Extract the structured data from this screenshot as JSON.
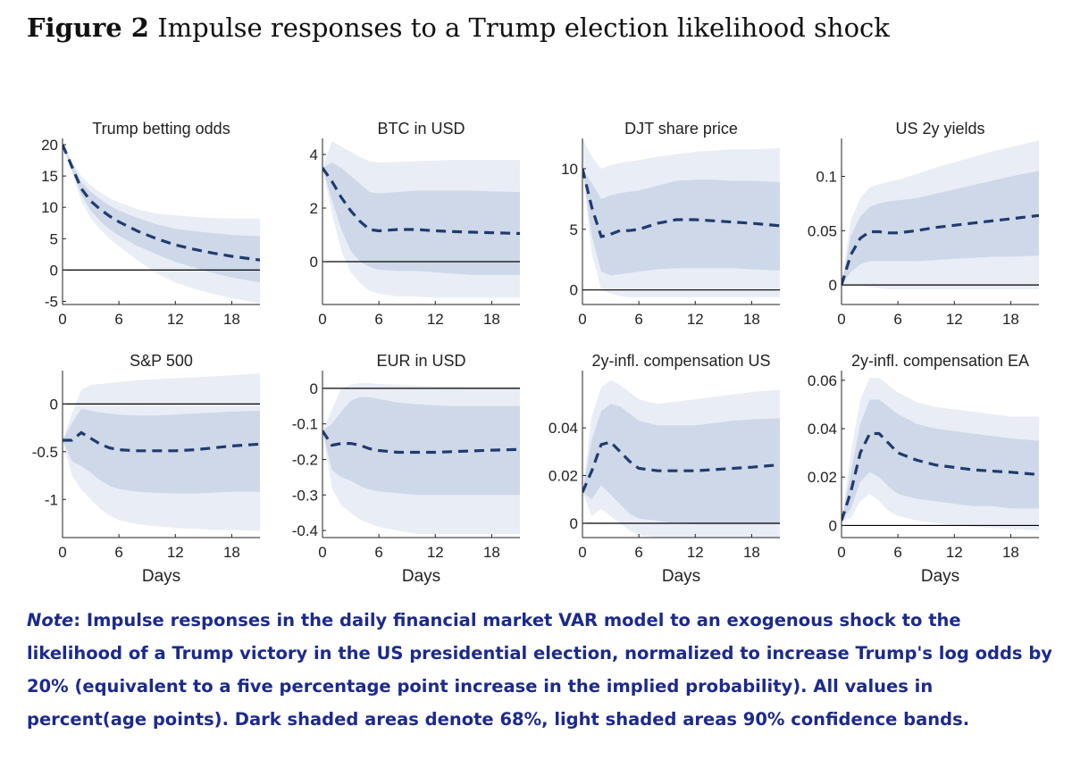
{
  "figure": {
    "label": "Figure 2",
    "title": "Impulse responses to a Trump election likelihood shock"
  },
  "note": {
    "lead": "Note",
    "text": ": Impulse responses in the daily financial market VAR model to an exogenous shock to the likelihood of a Trump victory in the US presidential election, normalized to increase Trump's log odds by 20% (equivalent to a five percentage point increase in the implied probability). All values in percent(age points). Dark shaded areas denote 68%, light shaded areas 90% confidence bands."
  },
  "colors": {
    "median_line": "#1f3b6e",
    "band_68": "#cfd8e8",
    "band_90": "#e9eef6",
    "zero_line": "#000000"
  },
  "chart_data": [
    {
      "type": "area",
      "title": "Trump betting odds",
      "xlabel": "",
      "xlim": [
        0,
        21
      ],
      "ylim": [
        -5.5,
        21
      ],
      "xticks": [
        0,
        6,
        12,
        18
      ],
      "yticks": [
        -5,
        0,
        5,
        10,
        15,
        20
      ],
      "ytick_labels": [
        "-5",
        "0",
        "5",
        "10",
        "15",
        "20"
      ],
      "x": [
        0,
        1,
        2,
        3,
        4,
        5,
        6,
        8,
        10,
        12,
        14,
        16,
        18,
        21
      ],
      "median": [
        20,
        16.5,
        13,
        11,
        9.7,
        8.6,
        7.7,
        6.2,
        5,
        4,
        3.3,
        2.7,
        2.2,
        1.6
      ],
      "band68_lower": [
        20,
        16,
        12,
        9.5,
        7.8,
        6.5,
        5.5,
        3.8,
        2.5,
        1.3,
        0.4,
        -0.5,
        -1.2,
        -2
      ],
      "band68_upper": [
        20,
        17,
        14,
        12.5,
        11.3,
        10.3,
        9.5,
        8.3,
        7.3,
        6.6,
        6.2,
        5.9,
        5.6,
        5.4
      ],
      "band90_lower": [
        20,
        15.5,
        11,
        8.3,
        6.5,
        5,
        3.8,
        1.5,
        -0.5,
        -2,
        -3,
        -3.8,
        -4.5,
        -5.3
      ],
      "band90_upper": [
        20,
        17.5,
        15,
        13.5,
        12.4,
        11.5,
        10.8,
        9.7,
        9,
        8.7,
        8.5,
        8.3,
        8.2,
        8.2
      ]
    },
    {
      "type": "area",
      "title": "BTC in USD",
      "xlabel": "",
      "xlim": [
        0,
        21
      ],
      "ylim": [
        -1.6,
        4.6
      ],
      "xticks": [
        0,
        6,
        12,
        18
      ],
      "yticks": [
        0,
        2,
        4
      ],
      "ytick_labels": [
        "0",
        "2",
        "4"
      ],
      "x": [
        0,
        1,
        2,
        3,
        4,
        5,
        6,
        8,
        10,
        12,
        14,
        16,
        18,
        21
      ],
      "median": [
        3.5,
        3.0,
        2.4,
        1.9,
        1.5,
        1.2,
        1.15,
        1.2,
        1.2,
        1.15,
        1.12,
        1.1,
        1.08,
        1.05
      ],
      "band68_lower": [
        3.5,
        2.3,
        1.2,
        0.4,
        0,
        -0.2,
        -0.3,
        -0.35,
        -0.35,
        -0.4,
        -0.45,
        -0.5,
        -0.5,
        -0.5
      ],
      "band68_upper": [
        3.5,
        3.7,
        3.5,
        3.2,
        2.9,
        2.6,
        2.55,
        2.6,
        2.65,
        2.65,
        2.65,
        2.65,
        2.62,
        2.6
      ],
      "band90_lower": [
        3.5,
        1.8,
        0.4,
        -0.4,
        -0.8,
        -1.1,
        -1.2,
        -1.3,
        -1.3,
        -1.35,
        -1.35,
        -1.35,
        -1.35,
        -1.35
      ],
      "band90_upper": [
        3.5,
        4.5,
        4.3,
        4.1,
        3.9,
        3.75,
        3.7,
        3.72,
        3.75,
        3.77,
        3.8,
        3.8,
        3.8,
        3.8
      ]
    },
    {
      "type": "area",
      "title": "DJT share price",
      "xlabel": "",
      "xlim": [
        0,
        21
      ],
      "ylim": [
        -1.2,
        12.5
      ],
      "xticks": [
        0,
        6,
        12,
        18
      ],
      "yticks": [
        0,
        5,
        10
      ],
      "ytick_labels": [
        "0",
        "5",
        "10"
      ],
      "x": [
        0,
        1,
        2,
        3,
        4,
        5,
        6,
        8,
        10,
        12,
        14,
        16,
        18,
        21
      ],
      "median": [
        10,
        6.8,
        4.4,
        4.6,
        4.9,
        4.9,
        5.0,
        5.5,
        5.8,
        5.8,
        5.7,
        5.6,
        5.5,
        5.3
      ],
      "band68_lower": [
        10,
        4.5,
        1.5,
        1.2,
        1.3,
        1.4,
        1.5,
        1.7,
        1.8,
        1.8,
        1.8,
        1.8,
        1.7,
        1.6
      ],
      "band68_upper": [
        10,
        8.8,
        7.5,
        7.8,
        8.0,
        8.1,
        8.2,
        8.6,
        9.0,
        9.1,
        9.1,
        9.0,
        9.0,
        8.9
      ],
      "band90_lower": [
        10,
        3.0,
        0,
        -0.3,
        -0.5,
        -0.6,
        -0.6,
        -0.6,
        -0.6,
        -0.6,
        -0.6,
        -0.6,
        -0.6,
        -0.6
      ],
      "band90_upper": [
        12.5,
        11,
        10,
        10.3,
        10.5,
        10.6,
        10.7,
        11,
        11.2,
        11.4,
        11.5,
        11.6,
        11.6,
        11.7
      ]
    },
    {
      "type": "area",
      "title": "US 2y yields",
      "xlabel": "",
      "xlim": [
        0,
        21
      ],
      "ylim": [
        -0.018,
        0.135
      ],
      "xticks": [
        0,
        6,
        12,
        18
      ],
      "yticks": [
        0,
        0.05,
        0.1
      ],
      "ytick_labels": [
        "0",
        "0.05",
        "0.1"
      ],
      "x": [
        0,
        1,
        2,
        3,
        4,
        5,
        6,
        8,
        10,
        12,
        14,
        16,
        18,
        21
      ],
      "median": [
        0,
        0.028,
        0.043,
        0.049,
        0.049,
        0.048,
        0.048,
        0.05,
        0.053,
        0.055,
        0.057,
        0.059,
        0.061,
        0.064
      ],
      "band68_lower": [
        0,
        0.012,
        0.019,
        0.022,
        0.022,
        0.022,
        0.022,
        0.022,
        0.023,
        0.024,
        0.025,
        0.026,
        0.026,
        0.027
      ],
      "band68_upper": [
        0,
        0.045,
        0.063,
        0.072,
        0.075,
        0.077,
        0.078,
        0.08,
        0.084,
        0.088,
        0.092,
        0.096,
        0.1,
        0.105
      ],
      "band90_lower": [
        0,
        0,
        0,
        -0.002,
        -0.003,
        -0.004,
        -0.004,
        -0.004,
        -0.004,
        -0.004,
        -0.004,
        -0.004,
        -0.004,
        -0.004
      ],
      "band90_upper": [
        0,
        0.06,
        0.08,
        0.09,
        0.093,
        0.095,
        0.097,
        0.102,
        0.108,
        0.113,
        0.118,
        0.123,
        0.127,
        0.133
      ]
    },
    {
      "type": "area",
      "title": "S&P 500",
      "xlabel": "Days",
      "xlim": [
        0,
        21
      ],
      "ylim": [
        -1.4,
        0.35
      ],
      "xticks": [
        0,
        6,
        12,
        18
      ],
      "yticks": [
        -1,
        -0.5,
        0
      ],
      "ytick_labels": [
        "-1",
        "-0.5",
        "0"
      ],
      "x": [
        0,
        1,
        2,
        3,
        4,
        5,
        6,
        8,
        10,
        12,
        14,
        16,
        18,
        21
      ],
      "median": [
        -0.38,
        -0.38,
        -0.3,
        -0.36,
        -0.42,
        -0.46,
        -0.48,
        -0.49,
        -0.49,
        -0.49,
        -0.48,
        -0.46,
        -0.44,
        -0.42
      ],
      "band68_lower": [
        -0.38,
        -0.6,
        -0.65,
        -0.72,
        -0.8,
        -0.86,
        -0.89,
        -0.92,
        -0.93,
        -0.94,
        -0.94,
        -0.93,
        -0.92,
        -0.92
      ],
      "band68_upper": [
        -0.38,
        -0.2,
        -0.05,
        -0.07,
        -0.09,
        -0.1,
        -0.11,
        -0.12,
        -0.12,
        -0.11,
        -0.1,
        -0.09,
        -0.08,
        -0.07
      ],
      "band90_lower": [
        -0.38,
        -0.75,
        -0.9,
        -1.0,
        -1.1,
        -1.17,
        -1.22,
        -1.26,
        -1.28,
        -1.3,
        -1.31,
        -1.32,
        -1.32,
        -1.33
      ],
      "band90_upper": [
        -0.38,
        -0.1,
        0.15,
        0.2,
        0.21,
        0.22,
        0.23,
        0.25,
        0.26,
        0.27,
        0.28,
        0.29,
        0.3,
        0.32
      ]
    },
    {
      "type": "area",
      "title": "EUR in USD",
      "xlabel": "Days",
      "xlim": [
        0,
        21
      ],
      "ylim": [
        -0.42,
        0.05
      ],
      "xticks": [
        0,
        6,
        12,
        18
      ],
      "yticks": [
        -0.4,
        -0.3,
        -0.2,
        -0.1,
        0
      ],
      "ytick_labels": [
        "-0.4",
        "-0.3",
        "-0.2",
        "-0.1",
        "0"
      ],
      "x": [
        0,
        1,
        2,
        3,
        4,
        5,
        6,
        8,
        10,
        12,
        14,
        16,
        18,
        21
      ],
      "median": [
        -0.12,
        -0.16,
        -0.155,
        -0.155,
        -0.16,
        -0.17,
        -0.175,
        -0.18,
        -0.18,
        -0.18,
        -0.178,
        -0.176,
        -0.174,
        -0.172
      ],
      "band68_lower": [
        -0.12,
        -0.23,
        -0.25,
        -0.26,
        -0.275,
        -0.285,
        -0.29,
        -0.295,
        -0.3,
        -0.3,
        -0.3,
        -0.3,
        -0.3,
        -0.3
      ],
      "band68_upper": [
        -0.12,
        -0.1,
        -0.065,
        -0.035,
        -0.025,
        -0.025,
        -0.03,
        -0.04,
        -0.045,
        -0.048,
        -0.05,
        -0.05,
        -0.05,
        -0.05
      ],
      "band90_lower": [
        -0.12,
        -0.28,
        -0.33,
        -0.35,
        -0.37,
        -0.38,
        -0.39,
        -0.4,
        -0.41,
        -0.41,
        -0.41,
        -0.41,
        -0.41,
        -0.41
      ],
      "band90_upper": [
        -0.12,
        -0.06,
        0.0,
        0.01,
        0.015,
        0.015,
        0.012,
        0.01,
        0.008,
        0.006,
        0.006,
        0.005,
        0.005,
        0.005
      ]
    },
    {
      "type": "area",
      "title": "2y-infl. compensation US",
      "xlabel": "Days",
      "xlim": [
        0,
        21
      ],
      "ylim": [
        -0.006,
        0.064
      ],
      "xticks": [
        0,
        6,
        12,
        18
      ],
      "yticks": [
        0,
        0.02,
        0.04
      ],
      "ytick_labels": [
        "0",
        "0.02",
        "0.04"
      ],
      "x": [
        0,
        1,
        2,
        3,
        4,
        5,
        6,
        8,
        10,
        12,
        14,
        16,
        18,
        21
      ],
      "median": [
        0.013,
        0.022,
        0.033,
        0.034,
        0.03,
        0.026,
        0.023,
        0.022,
        0.022,
        0.022,
        0.0225,
        0.023,
        0.0235,
        0.0245
      ],
      "band68_lower": [
        0.013,
        0.01,
        0.016,
        0.012,
        0.008,
        0.004,
        0.002,
        0.001,
        0.0,
        -0.0005,
        -0.0005,
        -0.0005,
        -0.0005,
        -0.0005
      ],
      "band68_upper": [
        0.013,
        0.035,
        0.047,
        0.05,
        0.049,
        0.046,
        0.043,
        0.041,
        0.041,
        0.041,
        0.042,
        0.043,
        0.0435,
        0.044
      ],
      "band90_lower": [
        0.013,
        0.003,
        0.006,
        0.003,
        0.0,
        -0.003,
        -0.005,
        -0.006,
        -0.006,
        -0.006,
        -0.006,
        -0.006,
        -0.006,
        -0.006
      ],
      "band90_upper": [
        0.013,
        0.045,
        0.057,
        0.06,
        0.058,
        0.055,
        0.052,
        0.05,
        0.051,
        0.052,
        0.053,
        0.054,
        0.055,
        0.056
      ]
    },
    {
      "type": "area",
      "title": "2y-infl. compensation EA",
      "xlabel": "Days",
      "xlim": [
        0,
        21
      ],
      "ylim": [
        -0.005,
        0.064
      ],
      "xticks": [
        0,
        6,
        12,
        18
      ],
      "yticks": [
        0,
        0.02,
        0.04,
        0.06
      ],
      "ytick_labels": [
        "0",
        "0.02",
        "0.04",
        "0.06"
      ],
      "x": [
        0,
        1,
        2,
        3,
        4,
        5,
        6,
        8,
        10,
        12,
        14,
        16,
        18,
        21
      ],
      "median": [
        0.002,
        0.014,
        0.03,
        0.038,
        0.038,
        0.034,
        0.03,
        0.027,
        0.025,
        0.024,
        0.023,
        0.0225,
        0.022,
        0.021
      ],
      "band68_lower": [
        0.002,
        0.007,
        0.018,
        0.022,
        0.02,
        0.016,
        0.013,
        0.011,
        0.01,
        0.009,
        0.008,
        0.008,
        0.007,
        0.007
      ],
      "band68_upper": [
        0.002,
        0.022,
        0.042,
        0.052,
        0.052,
        0.049,
        0.046,
        0.042,
        0.04,
        0.039,
        0.038,
        0.037,
        0.036,
        0.035
      ],
      "band90_lower": [
        0.002,
        0.003,
        0.01,
        0.013,
        0.01,
        0.006,
        0.004,
        0.002,
        0.001,
        0.0,
        -0.0005,
        -0.001,
        -0.0015,
        -0.002
      ],
      "band90_upper": [
        0.002,
        0.03,
        0.052,
        0.061,
        0.061,
        0.058,
        0.055,
        0.051,
        0.049,
        0.048,
        0.047,
        0.046,
        0.045,
        0.045
      ]
    }
  ]
}
